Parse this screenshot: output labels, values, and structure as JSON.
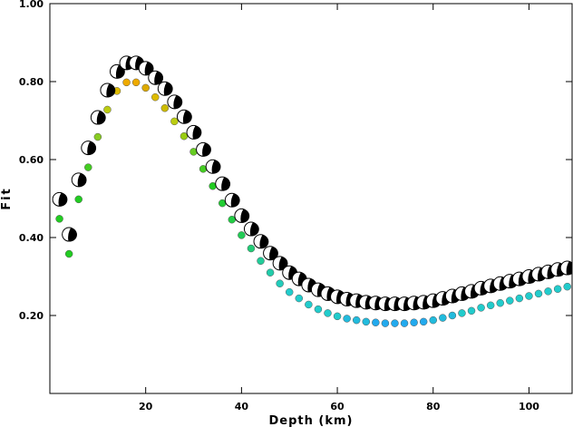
{
  "chart_data": {
    "type": "scatter",
    "xlabel": "Depth (km)",
    "ylabel": "Fit",
    "xlim": [
      0,
      109
    ],
    "ylim": [
      0,
      1
    ],
    "x_ticks": [
      20,
      40,
      60,
      80,
      100
    ],
    "y_ticks": [
      0.2,
      0.4,
      0.6,
      0.8,
      1.0
    ],
    "x_tick_labels": [
      "20",
      "40",
      "60",
      "80",
      "100"
    ],
    "y_tick_labels": [
      "0.20",
      "0.40",
      "0.60",
      "0.80",
      "1.00"
    ],
    "grid": false,
    "legend": "none",
    "series": [
      {
        "marker": "focal-mechanism-beachball",
        "x": [
          2,
          4,
          6,
          8,
          10,
          12,
          14,
          16,
          18,
          20,
          22,
          24,
          26,
          28,
          30,
          32,
          34,
          36,
          38,
          40,
          42,
          44,
          46,
          48,
          50,
          52,
          54,
          56,
          58,
          60,
          62,
          64,
          66,
          68,
          70,
          72,
          74,
          76,
          78,
          80,
          82,
          84,
          86,
          88,
          90,
          92,
          94,
          96,
          98,
          100,
          102,
          104,
          106,
          108
        ],
        "y": [
          0.498,
          0.408,
          0.548,
          0.63,
          0.708,
          0.778,
          0.826,
          0.848,
          0.848,
          0.834,
          0.81,
          0.782,
          0.748,
          0.71,
          0.67,
          0.626,
          0.582,
          0.538,
          0.496,
          0.456,
          0.422,
          0.39,
          0.36,
          0.334,
          0.31,
          0.294,
          0.278,
          0.266,
          0.256,
          0.248,
          0.242,
          0.238,
          0.234,
          0.232,
          0.23,
          0.23,
          0.23,
          0.232,
          0.234,
          0.238,
          0.244,
          0.25,
          0.256,
          0.262,
          0.27,
          0.276,
          0.282,
          0.288,
          0.294,
          0.3,
          0.306,
          0.312,
          0.318,
          0.322
        ]
      },
      {
        "marker": "colored-dot",
        "x": [
          2,
          4,
          6,
          8,
          10,
          12,
          14,
          16,
          18,
          20,
          22,
          24,
          26,
          28,
          30,
          32,
          34,
          36,
          38,
          40,
          42,
          44,
          46,
          48,
          50,
          52,
          54,
          56,
          58,
          60,
          62,
          64,
          66,
          68,
          70,
          72,
          74,
          76,
          78,
          80,
          82,
          84,
          86,
          88,
          90,
          92,
          94,
          96,
          98,
          100,
          102,
          104,
          106,
          108
        ],
        "y": [
          0.448,
          0.358,
          0.498,
          0.58,
          0.658,
          0.728,
          0.776,
          0.798,
          0.798,
          0.784,
          0.76,
          0.732,
          0.698,
          0.66,
          0.62,
          0.576,
          0.532,
          0.488,
          0.446,
          0.406,
          0.372,
          0.34,
          0.31,
          0.282,
          0.26,
          0.244,
          0.228,
          0.216,
          0.206,
          0.198,
          0.192,
          0.188,
          0.184,
          0.182,
          0.18,
          0.18,
          0.18,
          0.182,
          0.184,
          0.188,
          0.194,
          0.2,
          0.206,
          0.212,
          0.22,
          0.226,
          0.232,
          0.238,
          0.244,
          0.25,
          0.256,
          0.262,
          0.268,
          0.274
        ],
        "colors": [
          "#22cc22",
          "#22cc22",
          "#22cc22",
          "#44cc22",
          "#88cc22",
          "#bbcc11",
          "#ddbb00",
          "#eeaa00",
          "#eeaa00",
          "#ddaa00",
          "#ddbb00",
          "#ccbb00",
          "#bbcc11",
          "#99cc11",
          "#66cc22",
          "#44cc22",
          "#22cc22",
          "#22cc33",
          "#22cc44",
          "#22cc55",
          "#22cc77",
          "#22cc99",
          "#22ccaa",
          "#22ccbb",
          "#22cccc",
          "#22cccc",
          "#22cccc",
          "#22cccc",
          "#22cccc",
          "#22cccc",
          "#22bbdd",
          "#22bbdd",
          "#22bbdd",
          "#22aaee",
          "#22aaee",
          "#22aaee",
          "#22aaee",
          "#22aaee",
          "#22aaee",
          "#22bbdd",
          "#22bbdd",
          "#22bbdd",
          "#22cccc",
          "#22cccc",
          "#22cccc",
          "#22cccc",
          "#22cccc",
          "#22cccc",
          "#22cccc",
          "#22cccc",
          "#22cccc",
          "#22cccc",
          "#22cccc",
          "#22cccc"
        ]
      }
    ]
  }
}
